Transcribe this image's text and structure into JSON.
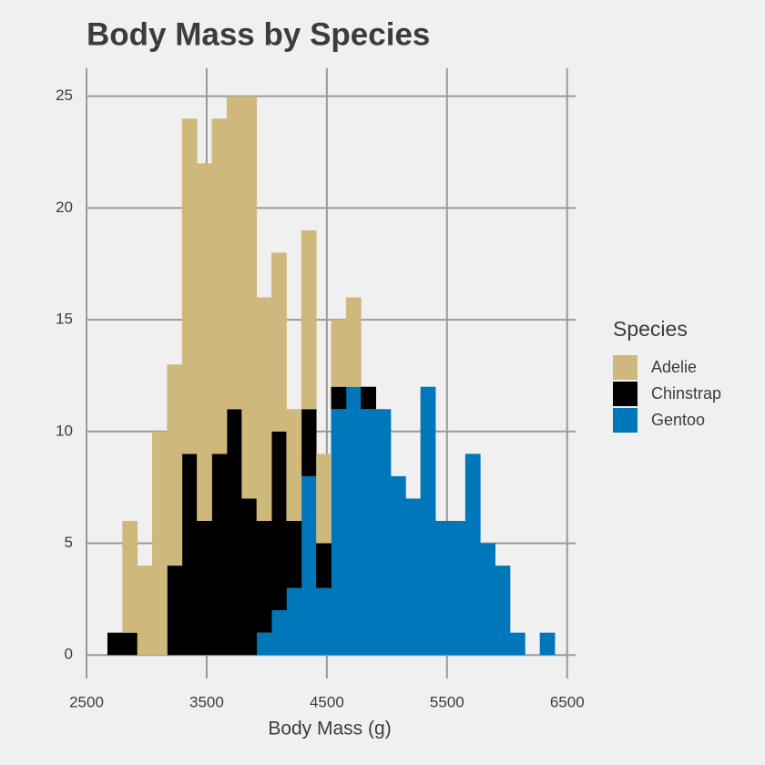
{
  "chart_data": {
    "type": "histogram",
    "title": "Body Mass by Species",
    "x_label": "Body Mass (g)",
    "legend_title": "Species",
    "bins": [
      2674,
      2798,
      2922,
      3046,
      3170,
      3294,
      3418,
      3542,
      3667,
      3791,
      3915,
      4039,
      4163,
      4287,
      4411,
      4535,
      4659,
      4783,
      4907,
      5031,
      5155,
      5279,
      5403,
      5527,
      5652,
      5776,
      5900,
      6024,
      6148,
      6272,
      6396
    ],
    "series": [
      {
        "name": "Adelie",
        "color": "#cfb87c",
        "values": [
          0,
          5,
          4,
          10,
          9,
          15,
          16,
          15,
          14,
          18,
          10,
          8,
          5,
          8,
          4,
          3,
          4,
          0,
          0,
          0,
          0,
          0,
          0,
          0,
          0,
          0,
          0,
          0,
          0,
          0
        ]
      },
      {
        "name": "Chinstrap",
        "color": "#000000",
        "values": [
          1,
          1,
          0,
          0,
          4,
          9,
          6,
          9,
          11,
          7,
          5,
          8,
          3,
          3,
          2,
          1,
          0,
          1,
          0,
          0,
          0,
          0,
          0,
          0,
          0,
          0,
          0,
          0,
          0,
          0
        ]
      },
      {
        "name": "Gentoo",
        "color": "#0077bb",
        "values": [
          0,
          0,
          0,
          0,
          0,
          0,
          0,
          0,
          0,
          0,
          1,
          2,
          3,
          8,
          3,
          11,
          12,
          11,
          11,
          8,
          7,
          12,
          6,
          6,
          9,
          5,
          4,
          1,
          0,
          1
        ]
      }
    ],
    "stack_order": [
      "Gentoo",
      "Chinstrap",
      "Adelie"
    ],
    "xlim": [
      2500,
      6570
    ],
    "xticks": [
      2500,
      3500,
      4500,
      5500,
      6500
    ],
    "ylim": [
      -1.05,
      26.25
    ],
    "yticks": [
      0,
      5,
      10,
      15,
      20,
      25
    ],
    "grid": true,
    "legend_position": "right"
  }
}
